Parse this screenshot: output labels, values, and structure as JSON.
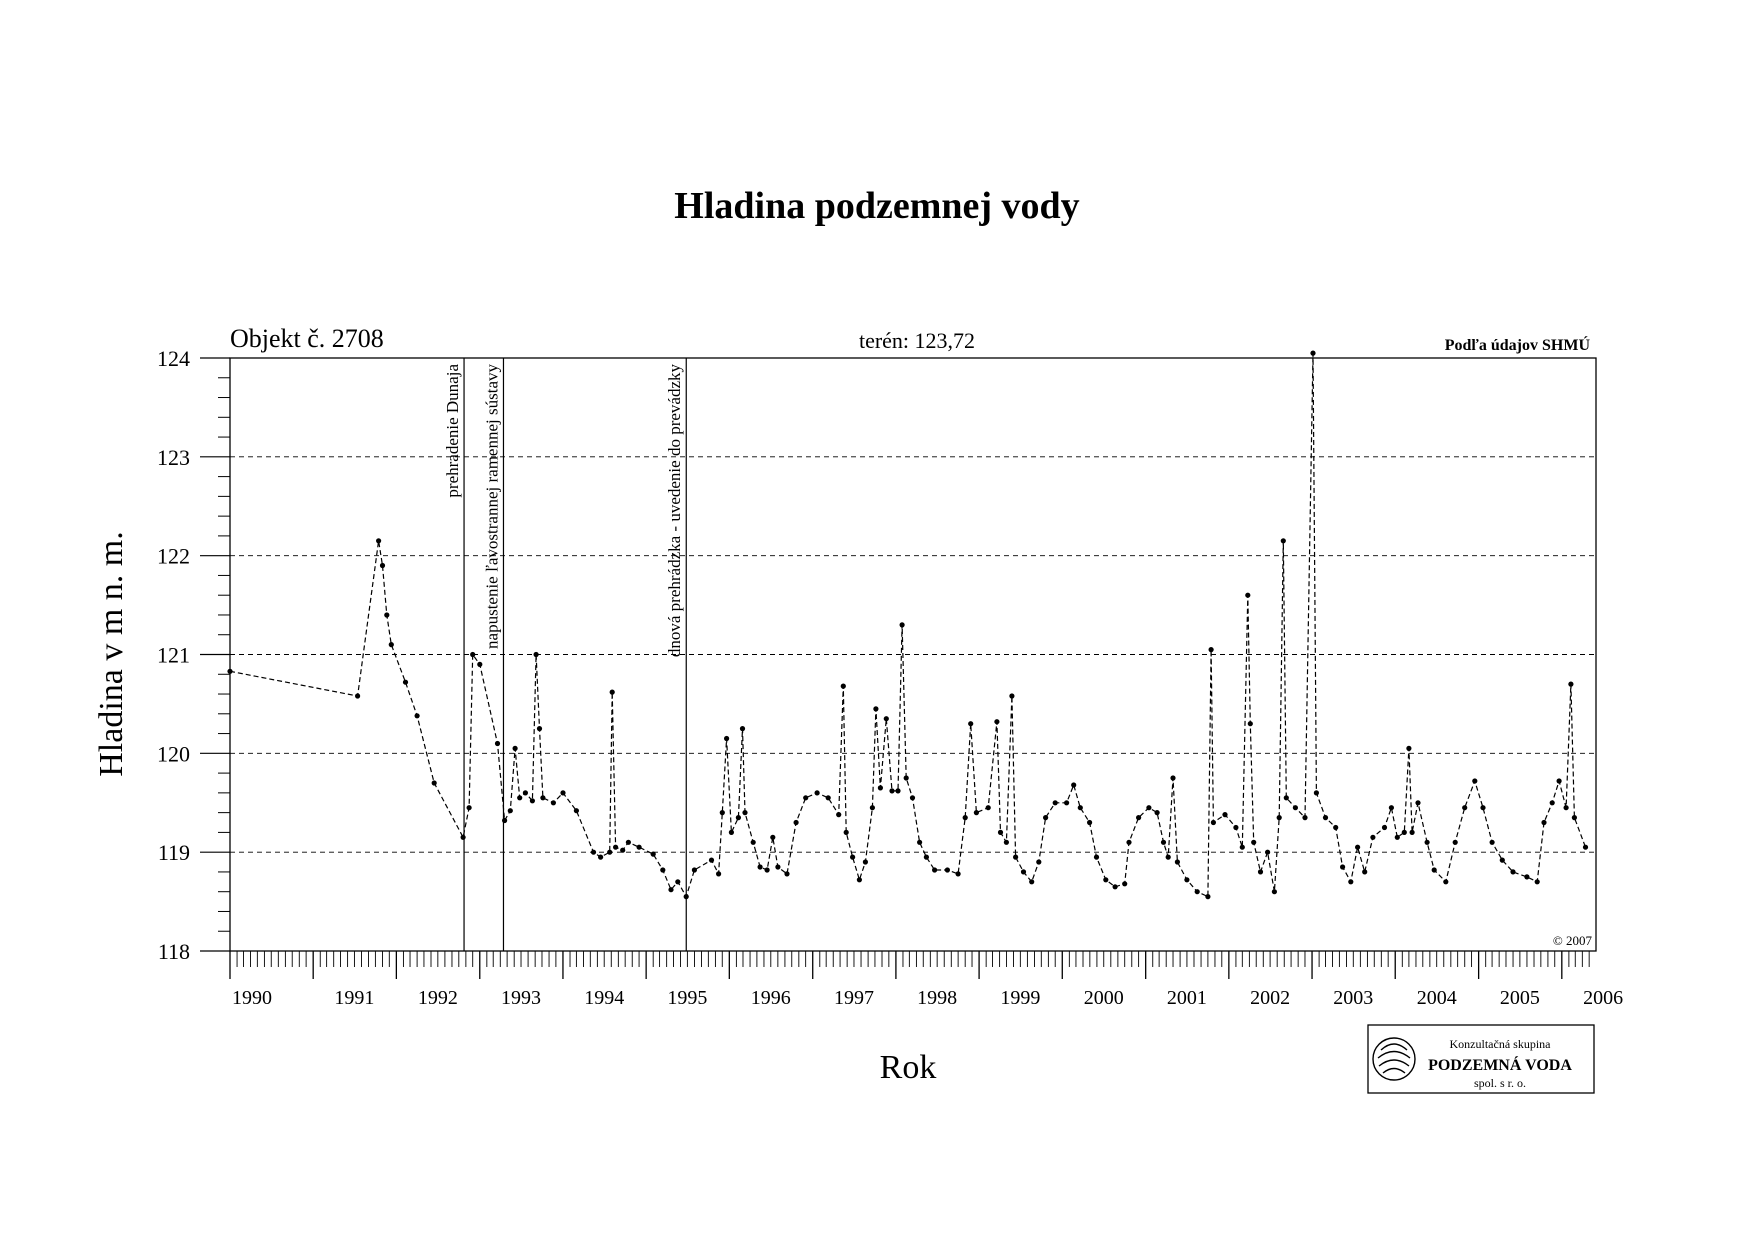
{
  "chart_data": {
    "type": "line",
    "title": "Hladina podzemnej vody",
    "xlabel": "Rok",
    "ylabel": "Hladina v m n. m.",
    "object_label": "Objekt č. 2708",
    "terrain_label": "terén: 123,72",
    "source_label": "Podľa údajov SHMÚ",
    "copyright": "© 2007",
    "ylim": [
      118,
      124
    ],
    "y_ticks": [
      "118",
      "119",
      "120",
      "121",
      "122",
      "123",
      "124"
    ],
    "xlim": [
      "1990-01-01",
      "2006-05-31"
    ],
    "x_tick_labels": [
      "1990",
      "1991",
      "1992",
      "1993",
      "1994",
      "1995",
      "1996",
      "1997",
      "1998",
      "1999",
      "2000",
      "2001",
      "2002",
      "2003",
      "2004",
      "2005",
      "2006"
    ],
    "grid": "horizontal dashed",
    "events": [
      {
        "date": "1992-10-24",
        "label": "prehradenie Dunaja"
      },
      {
        "date": "1993-04-15",
        "label": "napustenie ľavostrannej ramennej sústavy"
      },
      {
        "date": "1995-06-26",
        "label": "dnová prehrádzka - uvedenie do prevádzky"
      }
    ],
    "series": [
      {
        "values": [
          [
            "1990-01-01",
            120.83
          ],
          [
            "1991-07-15",
            120.58
          ],
          [
            "1991-10-15",
            122.15
          ],
          [
            "1991-11-01",
            121.9
          ],
          [
            "1991-11-20",
            121.4
          ],
          [
            "1991-12-10",
            121.1
          ],
          [
            "1992-02-10",
            120.72
          ],
          [
            "1992-04-01",
            120.38
          ],
          [
            "1992-06-15",
            119.7
          ],
          [
            "1992-10-20",
            119.15
          ],
          [
            "1992-11-15",
            119.45
          ],
          [
            "1992-12-01",
            121.0
          ],
          [
            "1993-01-01",
            120.9
          ],
          [
            "1993-03-20",
            120.1
          ],
          [
            "1993-04-20",
            119.32
          ],
          [
            "1993-05-15",
            119.42
          ],
          [
            "1993-06-05",
            120.05
          ],
          [
            "1993-06-25",
            119.55
          ],
          [
            "1993-07-20",
            119.6
          ],
          [
            "1993-08-20",
            119.52
          ],
          [
            "1993-09-05",
            121.0
          ],
          [
            "1993-09-20",
            120.25
          ],
          [
            "1993-10-05",
            119.55
          ],
          [
            "1993-11-20",
            119.5
          ],
          [
            "1994-01-01",
            119.6
          ],
          [
            "1994-03-01",
            119.42
          ],
          [
            "1994-05-15",
            119.0
          ],
          [
            "1994-06-15",
            118.95
          ],
          [
            "1994-07-25",
            119.0
          ],
          [
            "1994-08-05",
            120.62
          ],
          [
            "1994-08-20",
            119.05
          ],
          [
            "1994-09-20",
            119.02
          ],
          [
            "1994-10-15",
            119.1
          ],
          [
            "1994-12-01",
            119.05
          ],
          [
            "1995-02-01",
            118.98
          ],
          [
            "1995-03-15",
            118.82
          ],
          [
            "1995-04-20",
            118.62
          ],
          [
            "1995-05-20",
            118.7
          ],
          [
            "1995-06-26",
            118.55
          ],
          [
            "1995-08-01",
            118.82
          ],
          [
            "1995-10-15",
            118.92
          ],
          [
            "1995-11-15",
            118.78
          ],
          [
            "1995-12-01",
            119.4
          ],
          [
            "1995-12-20",
            120.15
          ],
          [
            "1996-01-10",
            119.2
          ],
          [
            "1996-02-10",
            119.35
          ],
          [
            "1996-02-28",
            120.25
          ],
          [
            "1996-03-10",
            119.4
          ],
          [
            "1996-04-15",
            119.1
          ],
          [
            "1996-05-15",
            118.85
          ],
          [
            "1996-06-15",
            118.82
          ],
          [
            "1996-07-10",
            119.15
          ],
          [
            "1996-08-01",
            118.85
          ],
          [
            "1996-09-10",
            118.78
          ],
          [
            "1996-10-20",
            119.3
          ],
          [
            "1996-12-01",
            119.55
          ],
          [
            "1997-01-20",
            119.6
          ],
          [
            "1997-03-10",
            119.55
          ],
          [
            "1997-04-25",
            119.38
          ],
          [
            "1997-05-15",
            120.68
          ],
          [
            "1997-05-28",
            119.2
          ],
          [
            "1997-06-25",
            118.95
          ],
          [
            "1997-07-25",
            118.72
          ],
          [
            "1997-08-20",
            118.9
          ],
          [
            "1997-09-20",
            119.45
          ],
          [
            "1997-10-05",
            120.45
          ],
          [
            "1997-10-25",
            119.65
          ],
          [
            "1997-11-20",
            120.35
          ],
          [
            "1997-12-15",
            119.62
          ],
          [
            "1998-01-10",
            119.62
          ],
          [
            "1998-01-28",
            121.3
          ],
          [
            "1998-02-15",
            119.75
          ],
          [
            "1998-03-15",
            119.55
          ],
          [
            "1998-04-15",
            119.1
          ],
          [
            "1998-05-15",
            118.95
          ],
          [
            "1998-06-20",
            118.82
          ],
          [
            "1998-08-15",
            118.82
          ],
          [
            "1998-10-01",
            118.78
          ],
          [
            "1998-11-01",
            119.35
          ],
          [
            "1998-11-25",
            120.3
          ],
          [
            "1998-12-20",
            119.4
          ],
          [
            "1999-02-10",
            119.45
          ],
          [
            "1999-03-20",
            120.32
          ],
          [
            "1999-04-05",
            119.2
          ],
          [
            "1999-05-01",
            119.1
          ],
          [
            "1999-05-25",
            120.58
          ],
          [
            "1999-06-10",
            118.95
          ],
          [
            "1999-07-15",
            118.8
          ],
          [
            "1999-08-20",
            118.7
          ],
          [
            "1999-09-20",
            118.9
          ],
          [
            "1999-10-20",
            119.35
          ],
          [
            "1999-12-01",
            119.5
          ],
          [
            "2000-01-20",
            119.5
          ],
          [
            "2000-02-20",
            119.68
          ],
          [
            "2000-03-20",
            119.45
          ],
          [
            "2000-04-30",
            119.3
          ],
          [
            "2000-05-30",
            118.95
          ],
          [
            "2000-07-10",
            118.72
          ],
          [
            "2000-08-20",
            118.65
          ],
          [
            "2000-10-01",
            118.68
          ],
          [
            "2000-10-20",
            119.1
          ],
          [
            "2000-12-01",
            119.35
          ],
          [
            "2001-01-15",
            119.45
          ],
          [
            "2001-02-20",
            119.4
          ],
          [
            "2001-03-20",
            119.1
          ],
          [
            "2001-04-10",
            118.95
          ],
          [
            "2001-05-01",
            119.75
          ],
          [
            "2001-05-20",
            118.9
          ],
          [
            "2001-07-01",
            118.72
          ],
          [
            "2001-08-15",
            118.6
          ],
          [
            "2001-10-01",
            118.55
          ],
          [
            "2001-10-15",
            121.05
          ],
          [
            "2001-10-25",
            119.3
          ],
          [
            "2001-12-15",
            119.38
          ],
          [
            "2002-02-01",
            119.25
          ],
          [
            "2002-03-01",
            119.05
          ],
          [
            "2002-03-25",
            121.6
          ],
          [
            "2002-04-05",
            120.3
          ],
          [
            "2002-04-20",
            119.1
          ],
          [
            "2002-05-20",
            118.8
          ],
          [
            "2002-06-20",
            119.0
          ],
          [
            "2002-07-20",
            118.6
          ],
          [
            "2002-08-10",
            119.35
          ],
          [
            "2002-08-28",
            122.15
          ],
          [
            "2002-09-10",
            119.55
          ],
          [
            "2002-10-20",
            119.45
          ],
          [
            "2002-12-01",
            119.35
          ],
          [
            "2003-01-05",
            124.05
          ],
          [
            "2003-01-20",
            119.6
          ],
          [
            "2003-03-01",
            119.35
          ],
          [
            "2003-04-15",
            119.25
          ],
          [
            "2003-05-15",
            118.85
          ],
          [
            "2003-06-20",
            118.7
          ],
          [
            "2003-07-20",
            119.05
          ],
          [
            "2003-08-20",
            118.8
          ],
          [
            "2003-09-25",
            119.15
          ],
          [
            "2003-11-15",
            119.25
          ],
          [
            "2003-12-15",
            119.45
          ],
          [
            "2004-01-10",
            119.15
          ],
          [
            "2004-02-10",
            119.2
          ],
          [
            "2004-03-01",
            120.05
          ],
          [
            "2004-03-15",
            119.2
          ],
          [
            "2004-04-10",
            119.5
          ],
          [
            "2004-05-20",
            119.1
          ],
          [
            "2004-06-20",
            118.82
          ],
          [
            "2004-08-10",
            118.7
          ],
          [
            "2004-09-20",
            119.1
          ],
          [
            "2004-11-01",
            119.45
          ],
          [
            "2004-12-15",
            119.72
          ],
          [
            "2005-01-20",
            119.45
          ],
          [
            "2005-03-01",
            119.1
          ],
          [
            "2005-04-15",
            118.92
          ],
          [
            "2005-06-01",
            118.8
          ],
          [
            "2005-08-01",
            118.75
          ],
          [
            "2005-09-15",
            118.7
          ],
          [
            "2005-10-15",
            119.3
          ],
          [
            "2005-11-20",
            119.5
          ],
          [
            "2005-12-20",
            119.72
          ],
          [
            "2006-01-20",
            119.45
          ],
          [
            "2006-02-10",
            120.7
          ],
          [
            "2006-02-25",
            119.35
          ],
          [
            "2006-04-15",
            119.05
          ]
        ]
      }
    ]
  },
  "logo": {
    "line1": "Konzultačná skupina",
    "line2": "PODZEMNÁ VODA",
    "line3": "spol. s r. o."
  }
}
